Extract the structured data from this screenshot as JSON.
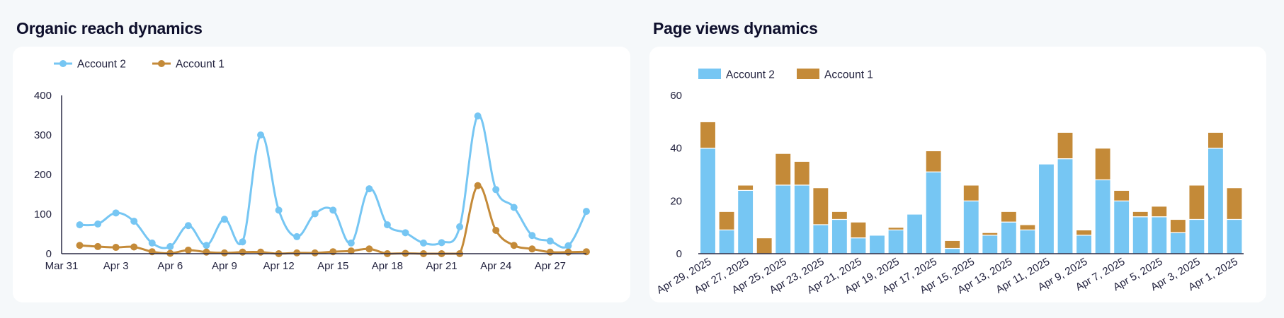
{
  "colors": {
    "account2": "#76c6f3",
    "account1": "#c48a38",
    "axis": "#2a2a45",
    "title": "#0e0f2c"
  },
  "panels": {
    "left_title": "Organic reach dynamics",
    "right_title": "Page views dynamics"
  },
  "chart_data": [
    {
      "type": "line",
      "title": "Organic reach dynamics",
      "xlabel": "",
      "ylabel": "",
      "smooth": true,
      "legend": {
        "placement": "top-left",
        "entries": [
          "Account 2",
          "Account 1"
        ]
      },
      "grid": false,
      "ylim": [
        0,
        400
      ],
      "yticks": [
        0,
        100,
        200,
        300,
        400
      ],
      "x_start_label": "Mar 31",
      "xticks": [
        "Mar 31",
        "Apr 3",
        "Apr 6",
        "Apr 9",
        "Apr 12",
        "Apr 15",
        "Apr 18",
        "Apr 21",
        "Apr 24",
        "Apr 27"
      ],
      "x": [
        "Apr 1",
        "Apr 2",
        "Apr 3",
        "Apr 4",
        "Apr 5",
        "Apr 6",
        "Apr 7",
        "Apr 8",
        "Apr 9",
        "Apr 10",
        "Apr 11",
        "Apr 12",
        "Apr 13",
        "Apr 14",
        "Apr 15",
        "Apr 16",
        "Apr 17",
        "Apr 18",
        "Apr 19",
        "Apr 20",
        "Apr 21",
        "Apr 22",
        "Apr 23",
        "Apr 24",
        "Apr 25",
        "Apr 26",
        "Apr 27",
        "Apr 28",
        "Apr 29"
      ],
      "series": [
        {
          "name": "Account 2",
          "color_key": "account2",
          "values": [
            73,
            75,
            103,
            82,
            27,
            18,
            71,
            21,
            87,
            30,
            300,
            110,
            43,
            101,
            110,
            27,
            164,
            73,
            53,
            27,
            28,
            68,
            348,
            162,
            117,
            46,
            32,
            20,
            107
          ]
        },
        {
          "name": "Account 1",
          "color_key": "account1",
          "values": [
            21,
            18,
            16,
            17,
            5,
            1,
            9,
            4,
            2,
            4,
            4,
            0,
            2,
            2,
            5,
            7,
            12,
            0,
            1,
            0,
            0,
            0,
            172,
            59,
            21,
            12,
            4,
            4,
            5
          ]
        }
      ]
    },
    {
      "type": "bar",
      "stacked": true,
      "title": "Page views dynamics",
      "xlabel": "",
      "ylabel": "",
      "legend": {
        "placement": "top-left",
        "entries": [
          "Account 2",
          "Account 1"
        ]
      },
      "grid": false,
      "ylim": [
        0,
        60
      ],
      "yticks": [
        0,
        20,
        40,
        60
      ],
      "categories": [
        "Apr 29, 2025",
        "Apr 28, 2025",
        "Apr 27, 2025",
        "Apr 26, 2025",
        "Apr 25, 2025",
        "Apr 24, 2025",
        "Apr 23, 2025",
        "Apr 22, 2025",
        "Apr 21, 2025",
        "Apr 20, 2025",
        "Apr 19, 2025",
        "Apr 18, 2025",
        "Apr 17, 2025",
        "Apr 16, 2025",
        "Apr 15, 2025",
        "Apr 14, 2025",
        "Apr 13, 2025",
        "Apr 12, 2025",
        "Apr 11, 2025",
        "Apr 10, 2025",
        "Apr 9, 2025",
        "Apr 8, 2025",
        "Apr 7, 2025",
        "Apr 6, 2025",
        "Apr 5, 2025",
        "Apr 4, 2025",
        "Apr 3, 2025",
        "Apr 2, 2025",
        "Apr 1, 2025"
      ],
      "xtick_labels": [
        "Apr 29, 2025",
        "Apr 27, 2025",
        "Apr 25, 2025",
        "Apr 23, 2025",
        "Apr 21, 2025",
        "Apr 19, 2025",
        "Apr 17, 2025",
        "Apr 15, 2025",
        "Apr 13, 2025",
        "Apr 11, 2025",
        "Apr 9, 2025",
        "Apr 7, 2025",
        "Apr 5, 2025",
        "Apr 3, 2025",
        "Apr 1, 2025"
      ],
      "series": [
        {
          "name": "Account 2",
          "color_key": "account2",
          "values": [
            40,
            9,
            24,
            0,
            26,
            26,
            11,
            13,
            6,
            7,
            9,
            15,
            31,
            2,
            20,
            7,
            12,
            9,
            34,
            36,
            7,
            28,
            20,
            14,
            14,
            8,
            13,
            40,
            13
          ]
        },
        {
          "name": "Account 1",
          "color_key": "account1",
          "values": [
            10,
            7,
            2,
            6,
            12,
            9,
            14,
            3,
            6,
            0,
            1,
            0,
            8,
            3,
            6,
            1,
            4,
            2,
            0,
            10,
            2,
            12,
            4,
            2,
            4,
            5,
            13,
            6,
            12
          ]
        }
      ]
    }
  ]
}
